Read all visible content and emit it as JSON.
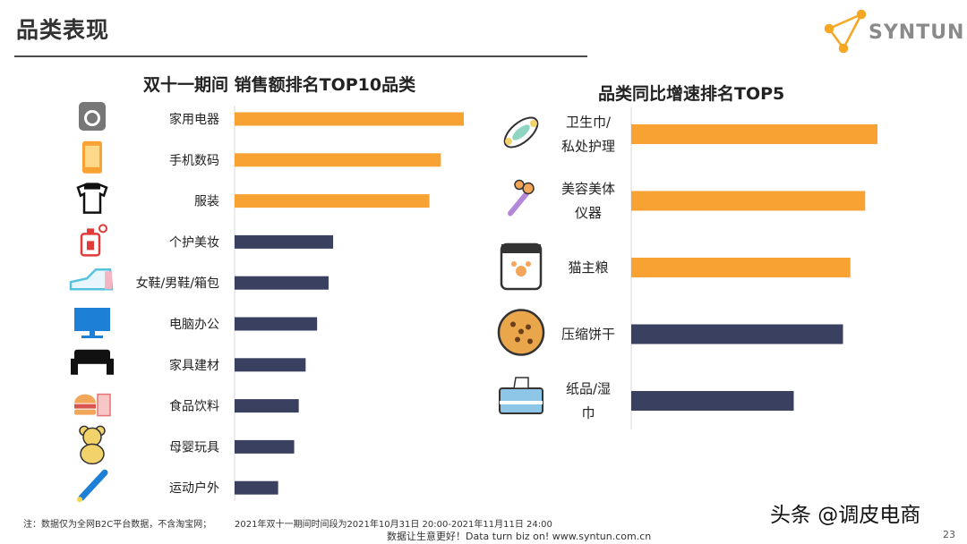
{
  "header": {
    "title": "品类表现",
    "logo_text": "SYNTUN"
  },
  "colors": {
    "orange": "#F7A233",
    "navy": "#3A4160",
    "icon_blue": "#1E7FD6",
    "logo_orange": "#F5A623"
  },
  "chart_data": [
    {
      "type": "bar",
      "orientation": "horizontal",
      "title": "双十一期间 销售额排名TOP10品类",
      "categories": [
        "家用电器",
        "手机数码",
        "服装",
        "个护美妆",
        "女鞋/男鞋/箱包",
        "电脑办公",
        "家具建材",
        "食品饮料",
        "母婴玩具",
        "运动户外"
      ],
      "values": [
        100,
        90,
        85,
        43,
        41,
        36,
        31,
        28,
        26,
        19
      ],
      "highlight": [
        "orange",
        "orange",
        "orange",
        "navy",
        "navy",
        "navy",
        "navy",
        "navy",
        "navy",
        "navy"
      ],
      "icons": [
        "camera-icon",
        "phone-icon",
        "tshirt-icon",
        "perfume-icon",
        "shoe-icon",
        "monitor-icon",
        "sofa-icon",
        "food-icon",
        "teddy-bear-icon",
        "baseball-bat-icon"
      ],
      "xlim": [
        0,
        100
      ],
      "grid": false,
      "legend": "none"
    },
    {
      "type": "bar",
      "orientation": "horizontal",
      "title": "品类同比增速排名TOP5",
      "categories": [
        "卫生巾/私处护理",
        "美容美体仪器",
        "猫主粮",
        "压缩饼干",
        "纸品/湿巾"
      ],
      "label_lines": [
        [
          "卫生巾/",
          "私处护理"
        ],
        [
          "美容美体",
          "仪器"
        ],
        [
          "猫主粮"
        ],
        [
          "压缩饼干"
        ],
        [
          "纸品/湿",
          "巾"
        ]
      ],
      "values": [
        100,
        95,
        89,
        86,
        66
      ],
      "highlight": [
        "orange",
        "orange",
        "orange",
        "navy",
        "navy"
      ],
      "icons": [
        "sanitary-pad-icon",
        "beauty-roller-icon",
        "cat-food-bag-icon",
        "biscuit-icon",
        "tissue-box-icon"
      ],
      "xlim": [
        0,
        100
      ],
      "grid": false,
      "legend": "none"
    }
  ],
  "footer": {
    "note1": "注：数据仅为全网B2C平台数据，不含淘宝网；",
    "note2": "2021年双十一期间时间段为2021年10月31日 20:00-2021年11月11日 24:00",
    "slogan": "数据让生意更好！Data turn biz on!  www.syntun.com.cn",
    "page_number": "23",
    "watermark": "头条 @调皮电商"
  }
}
